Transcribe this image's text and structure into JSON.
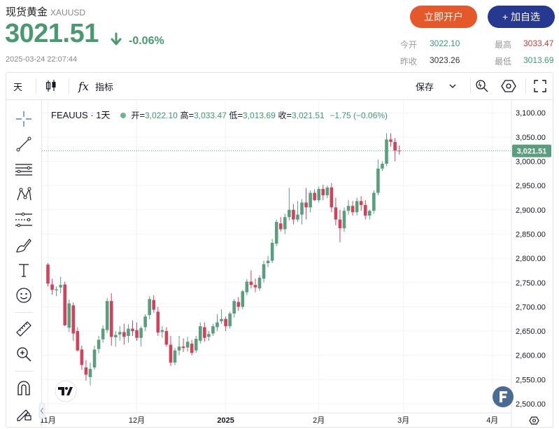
{
  "header": {
    "title": "现货黄金",
    "symbol": "XAUUSD",
    "price": "3021.51",
    "change_pct": "-0.06%",
    "timestamp": "2025-03-24 22:07:44",
    "open_account_label": "立即开户",
    "add_watch_label": "+ 加自选",
    "quote": {
      "open_label": "今开",
      "open_value": "3022.10",
      "high_label": "最高",
      "high_value": "3033.47",
      "prev_label": "昨收",
      "prev_value": "3023.26",
      "low_label": "最低",
      "low_value": "3013.69"
    }
  },
  "toolbar": {
    "interval_label": "天",
    "indicator_label": "指标",
    "save_label": "保存",
    "fx_glyph": "fx"
  },
  "legend": {
    "symbol": "FEAUUS · 1天",
    "open_label": "开",
    "open_value": "3,022.10",
    "high_label": "高",
    "high_value": "3,033.47",
    "low_label": "低",
    "low_value": "3,013.69",
    "close_label": "收",
    "close_value": "3,021.51",
    "change": "−1.75 (−0.06%)"
  },
  "colors": {
    "up": "#5a9e7e",
    "down": "#d0435a",
    "accent_orange": "#e5582a",
    "accent_blue": "#26388f"
  },
  "chart_data": {
    "type": "candlestick",
    "last_price_label": "3,021.51",
    "last_price": 3021.51,
    "ylim": [
      2500,
      3100
    ],
    "y_ticks": [
      "2,500.00",
      "2,550.00",
      "2,600.00",
      "2,650.00",
      "2,700.00",
      "2,750.00",
      "2,800.00",
      "2,850.00",
      "2,900.00",
      "2,950.00",
      "3,000.00",
      "3,050.00",
      "3,100.00"
    ],
    "y_tick_values": [
      2500,
      2550,
      2600,
      2650,
      2700,
      2750,
      2800,
      2850,
      2900,
      2950,
      3000,
      3050,
      3100
    ],
    "x_labels": [
      {
        "label": "11月",
        "bar": 0
      },
      {
        "label": "12月",
        "bar": 21
      },
      {
        "label": "2025",
        "bar": 42
      },
      {
        "label": "2月",
        "bar": 64
      },
      {
        "label": "3月",
        "bar": 84
      },
      {
        "label": "4月",
        "bar": 105
      }
    ],
    "candles": [
      [
        2787,
        2790,
        2742,
        2748
      ],
      [
        2746,
        2758,
        2725,
        2735
      ],
      [
        2734,
        2742,
        2722,
        2736
      ],
      [
        2740,
        2762,
        2728,
        2745
      ],
      [
        2746,
        2752,
        2660,
        2662
      ],
      [
        2657,
        2715,
        2648,
        2707
      ],
      [
        2703,
        2709,
        2630,
        2645
      ],
      [
        2650,
        2658,
        2608,
        2610
      ],
      [
        2612,
        2620,
        2570,
        2580
      ],
      [
        2575,
        2590,
        2548,
        2560
      ],
      [
        2555,
        2585,
        2538,
        2572
      ],
      [
        2575,
        2620,
        2570,
        2612
      ],
      [
        2613,
        2640,
        2604,
        2632
      ],
      [
        2633,
        2662,
        2626,
        2655
      ],
      [
        2652,
        2718,
        2646,
        2712
      ],
      [
        2712,
        2728,
        2620,
        2638
      ],
      [
        2637,
        2650,
        2618,
        2642
      ],
      [
        2643,
        2660,
        2630,
        2648
      ],
      [
        2648,
        2665,
        2622,
        2638
      ],
      [
        2640,
        2664,
        2626,
        2655
      ],
      [
        2655,
        2672,
        2640,
        2650
      ],
      [
        2652,
        2668,
        2630,
        2636
      ],
      [
        2636,
        2660,
        2618,
        2656
      ],
      [
        2658,
        2685,
        2650,
        2680
      ],
      [
        2683,
        2722,
        2674,
        2716
      ],
      [
        2714,
        2724,
        2688,
        2694
      ],
      [
        2690,
        2700,
        2640,
        2647
      ],
      [
        2648,
        2660,
        2636,
        2652
      ],
      [
        2650,
        2658,
        2618,
        2622
      ],
      [
        2622,
        2640,
        2578,
        2585
      ],
      [
        2585,
        2615,
        2580,
        2610
      ],
      [
        2610,
        2640,
        2600,
        2618
      ],
      [
        2618,
        2635,
        2607,
        2615
      ],
      [
        2616,
        2638,
        2608,
        2628
      ],
      [
        2624,
        2632,
        2600,
        2605
      ],
      [
        2610,
        2640,
        2605,
        2634
      ],
      [
        2630,
        2668,
        2624,
        2660
      ],
      [
        2658,
        2668,
        2628,
        2636
      ],
      [
        2638,
        2650,
        2630,
        2644
      ],
      [
        2645,
        2665,
        2640,
        2660
      ],
      [
        2658,
        2685,
        2650,
        2668
      ],
      [
        2670,
        2695,
        2665,
        2675
      ],
      [
        2675,
        2680,
        2650,
        2660
      ],
      [
        2660,
        2690,
        2655,
        2686
      ],
      [
        2686,
        2716,
        2678,
        2712
      ],
      [
        2710,
        2720,
        2692,
        2700
      ],
      [
        2700,
        2735,
        2695,
        2732
      ],
      [
        2730,
        2757,
        2724,
        2752
      ],
      [
        2752,
        2775,
        2738,
        2745
      ],
      [
        2745,
        2758,
        2730,
        2740
      ],
      [
        2738,
        2765,
        2733,
        2760
      ],
      [
        2758,
        2795,
        2750,
        2788
      ],
      [
        2790,
        2805,
        2782,
        2795
      ],
      [
        2795,
        2840,
        2790,
        2832
      ],
      [
        2830,
        2880,
        2825,
        2875
      ],
      [
        2872,
        2885,
        2855,
        2860
      ],
      [
        2860,
        2892,
        2850,
        2885
      ],
      [
        2885,
        2945,
        2878,
        2900
      ],
      [
        2900,
        2912,
        2870,
        2880
      ],
      [
        2880,
        2918,
        2875,
        2890
      ],
      [
        2890,
        2922,
        2870,
        2915
      ],
      [
        2915,
        2945,
        2880,
        2905
      ],
      [
        2905,
        2940,
        2895,
        2935
      ],
      [
        2935,
        2942,
        2918,
        2920
      ],
      [
        2920,
        2948,
        2915,
        2943
      ],
      [
        2943,
        2952,
        2920,
        2930
      ],
      [
        2930,
        2950,
        2924,
        2946
      ],
      [
        2946,
        2955,
        2895,
        2905
      ],
      [
        2905,
        2925,
        2868,
        2880
      ],
      [
        2880,
        2900,
        2833,
        2862
      ],
      [
        2862,
        2905,
        2855,
        2898
      ],
      [
        2898,
        2920,
        2890,
        2908
      ],
      [
        2908,
        2918,
        2888,
        2895
      ],
      [
        2895,
        2925,
        2888,
        2918
      ],
      [
        2918,
        2928,
        2898,
        2910
      ],
      [
        2910,
        2920,
        2880,
        2888
      ],
      [
        2888,
        2900,
        2880,
        2898
      ],
      [
        2898,
        2940,
        2892,
        2935
      ],
      [
        2935,
        3004,
        2930,
        2985
      ],
      [
        2985,
        3000,
        2980,
        2995
      ],
      [
        2995,
        3058,
        2990,
        3045
      ],
      [
        3045,
        3058,
        3030,
        3040
      ],
      [
        3040,
        3048,
        3000,
        3022
      ],
      [
        3022,
        3033,
        3014,
        3021
      ]
    ]
  }
}
